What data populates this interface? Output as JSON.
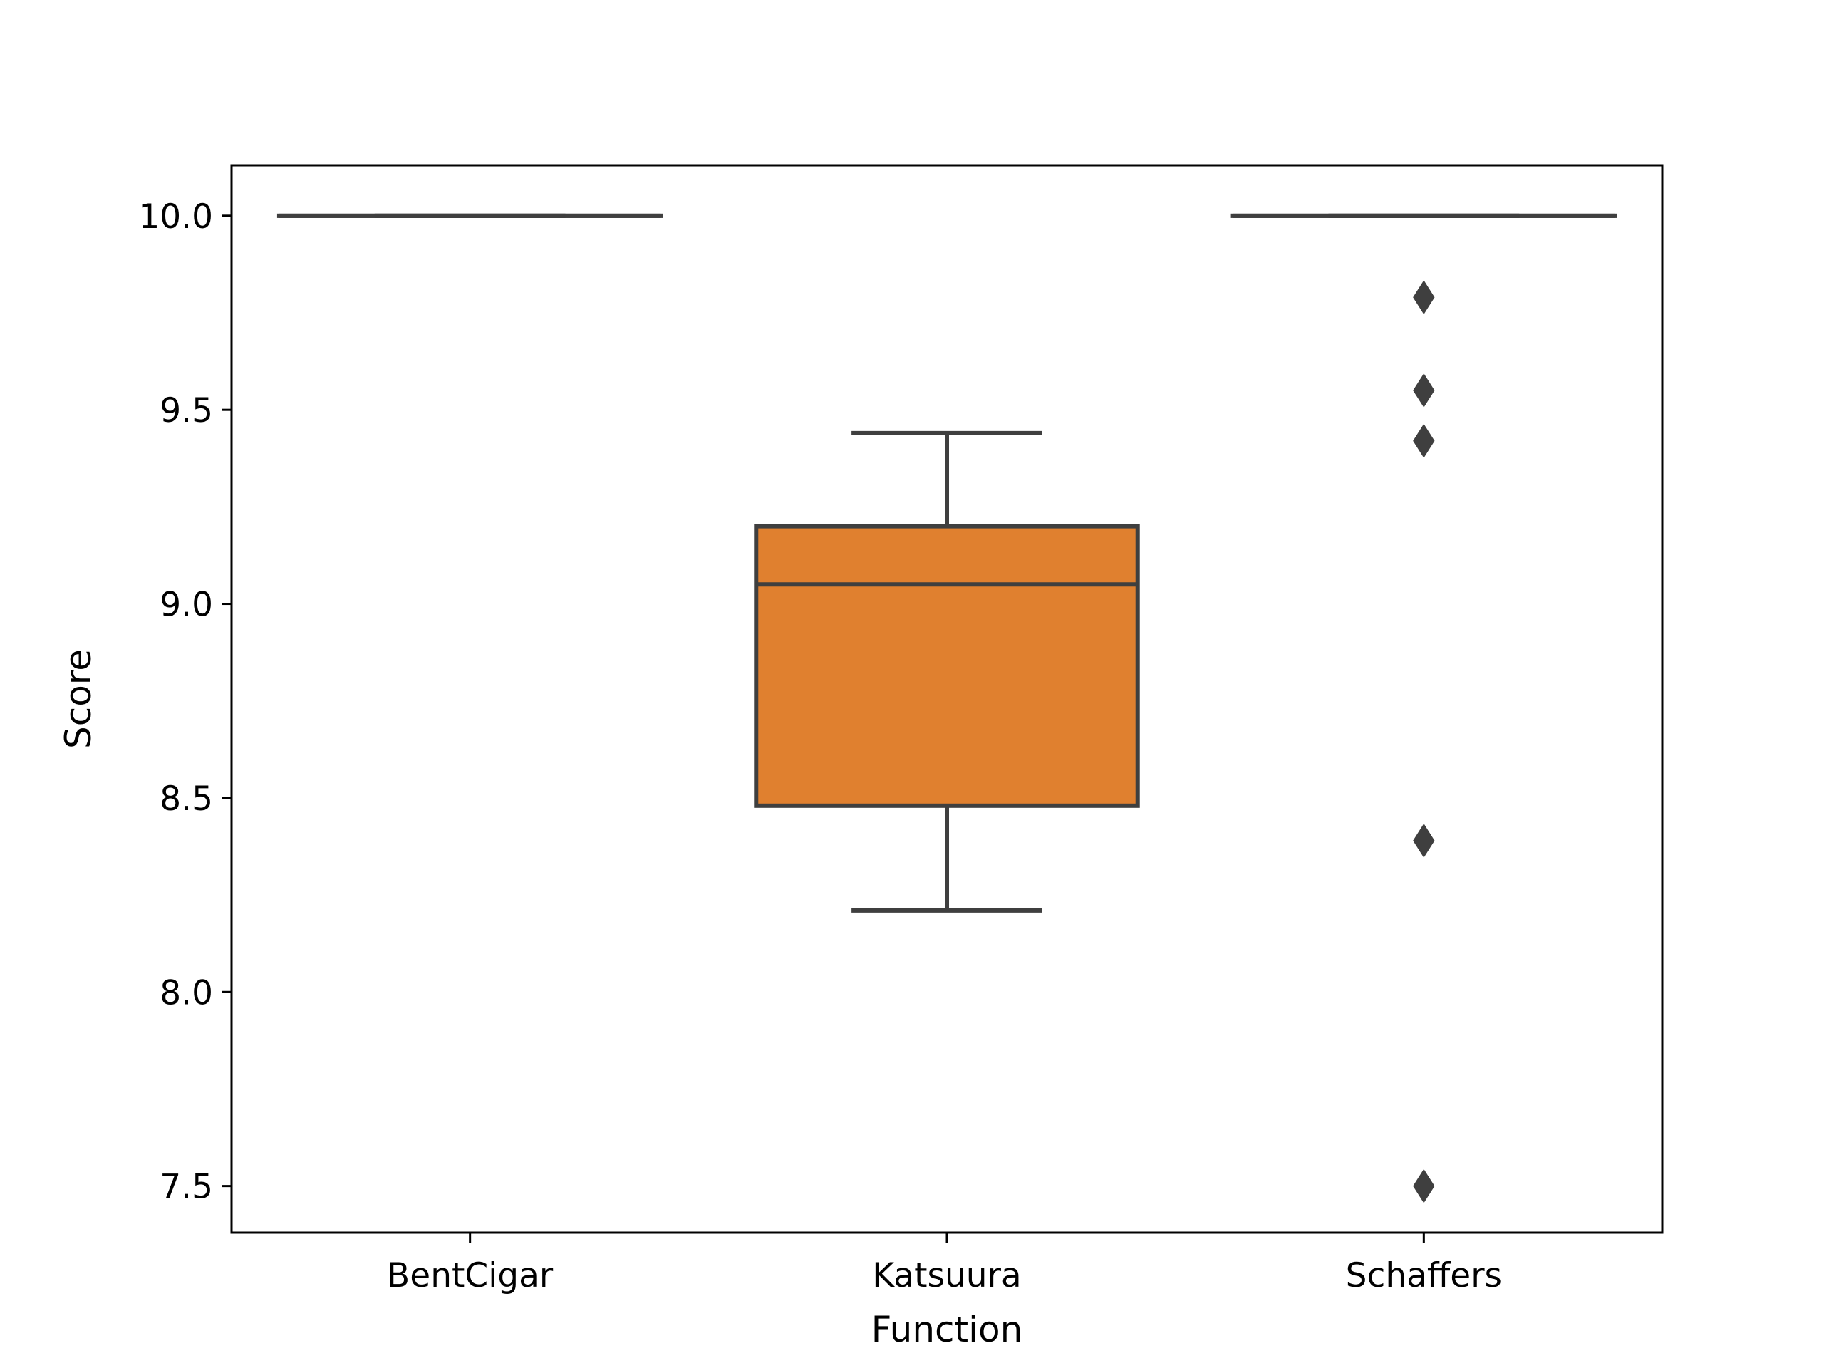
{
  "chart_data": {
    "type": "box",
    "title": "",
    "xlabel": "Function",
    "ylabel": "Score",
    "categories": [
      "BentCigar",
      "Katsuura",
      "Schaffers"
    ],
    "ylim": [
      7.38,
      10.13
    ],
    "yticks": [
      "7.5",
      "8.0",
      "8.5",
      "9.0",
      "9.5",
      "10.0"
    ],
    "grid": false,
    "boxes": [
      {
        "category": "BentCigar",
        "whisker_low": 10.0,
        "q1": 10.0,
        "median": 10.0,
        "q3": 10.0,
        "whisker_high": 10.0,
        "outliers": [],
        "fill": "#1f77b4"
      },
      {
        "category": "Katsuura",
        "whisker_low": 8.21,
        "q1": 8.48,
        "median": 9.05,
        "q3": 9.2,
        "whisker_high": 9.44,
        "outliers": [],
        "fill": "#e0802f"
      },
      {
        "category": "Schaffers",
        "whisker_low": 10.0,
        "q1": 10.0,
        "median": 10.0,
        "q3": 10.0,
        "whisker_high": 10.0,
        "outliers": [
          9.79,
          9.55,
          9.42,
          8.39,
          7.5
        ],
        "fill": "#2ca02c"
      }
    ],
    "colors": {
      "line": "#3f3f3f",
      "axes": "#000000"
    }
  }
}
